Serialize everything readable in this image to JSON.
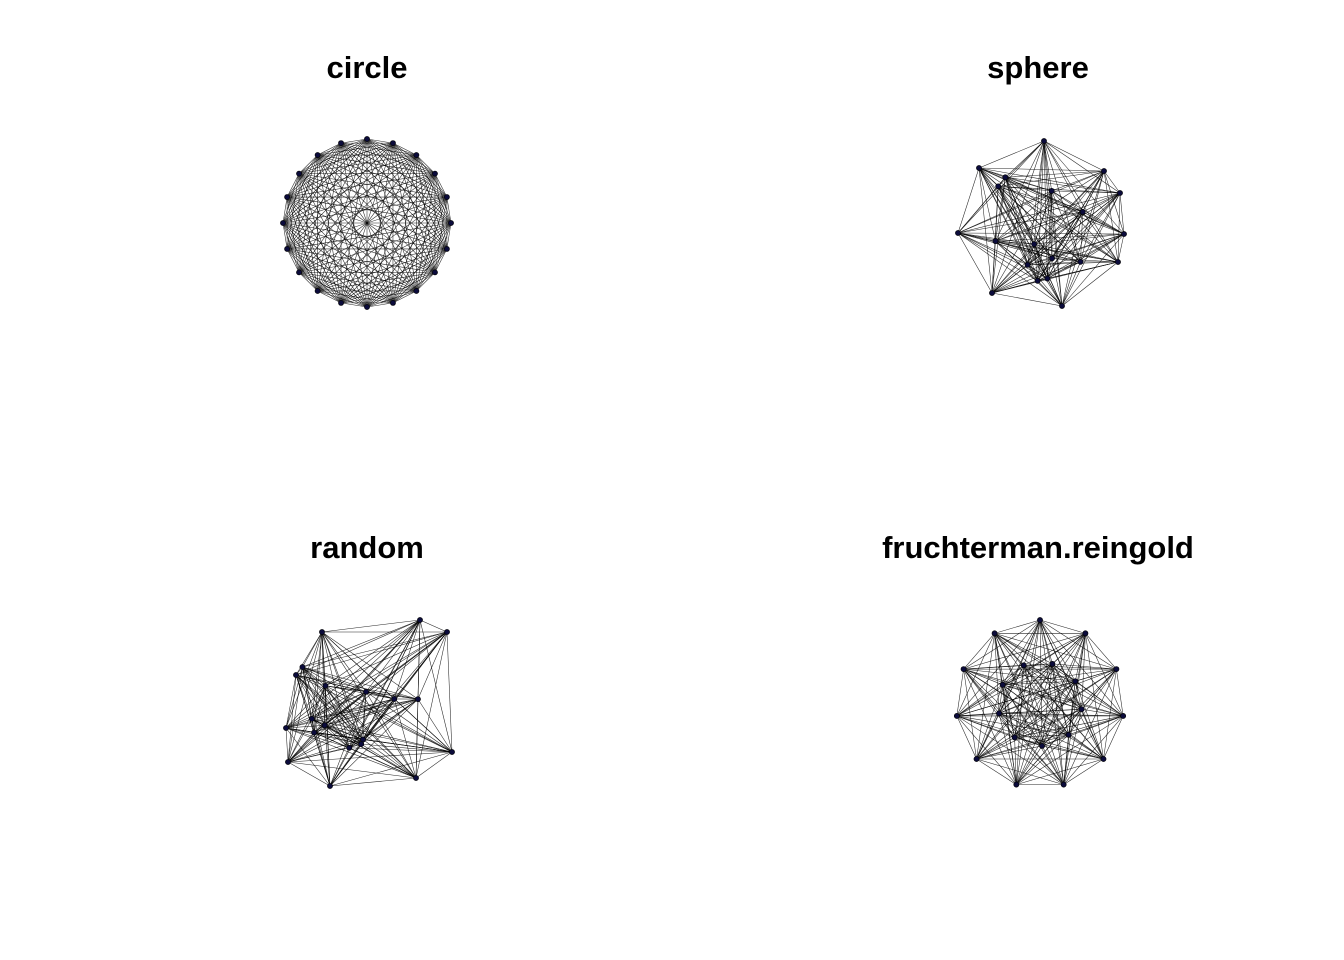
{
  "panels": [
    {
      "title": "circle",
      "layout": "circle"
    },
    {
      "title": "sphere",
      "layout": "sphere"
    },
    {
      "title": "random",
      "layout": "random"
    },
    {
      "title": "fruchterman.reingold",
      "layout": "fruchterman.reingold"
    }
  ],
  "graph": {
    "type": "complete",
    "node_count": 20
  },
  "colors": {
    "edge": "#000000",
    "node": "#0b0b3b",
    "background": "#ffffff"
  }
}
